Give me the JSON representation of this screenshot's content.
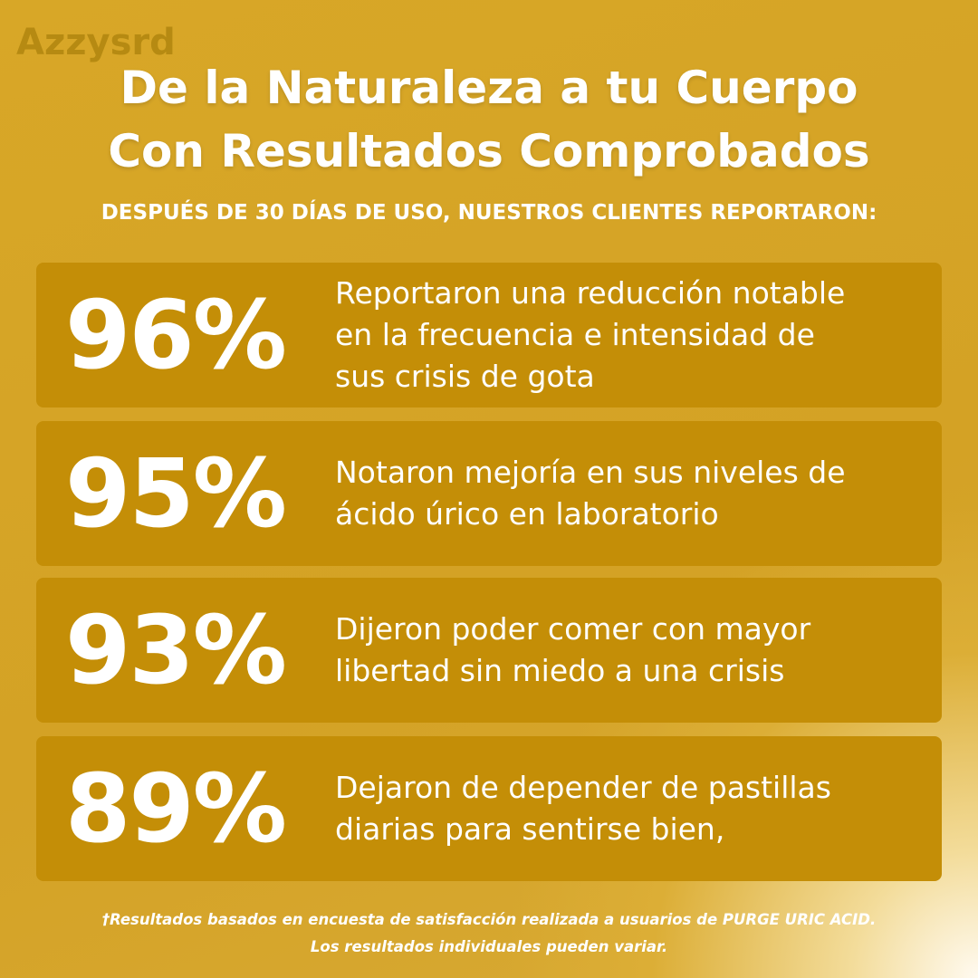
{
  "watermark": "Azzysrd",
  "header": {
    "title_lines": [
      "De la Naturaleza a tu Cuerpo",
      "Con Resultados Comprobados"
    ],
    "subtitle": "DESPUÉS DE 30 DÍAS DE USO, NUESTROS CLIENTES REPORTARON:"
  },
  "cards": [
    {
      "stat": "96%",
      "lines": [
        "Reportaron una reducción notable",
        "en la frecuencia e intensidad de",
        "sus crisis de gota"
      ]
    },
    {
      "stat": "95%",
      "lines": [
        "Notaron mejoría en sus niveles de",
        "ácido úrico en laboratorio"
      ]
    },
    {
      "stat": "93%",
      "lines": [
        "Dijeron poder comer con mayor",
        "libertad sin miedo a una crisis"
      ]
    },
    {
      "stat": "89%",
      "lines": [
        "Dejaron de depender de pastillas",
        "diarias para sentirse bien,"
      ]
    }
  ],
  "footer": {
    "lines": [
      "†Resultados basados en encuesta de satisfacción realizada a usuarios de PURGE URIC ACID.",
      "Los resultados individuales pueden variar."
    ]
  }
}
